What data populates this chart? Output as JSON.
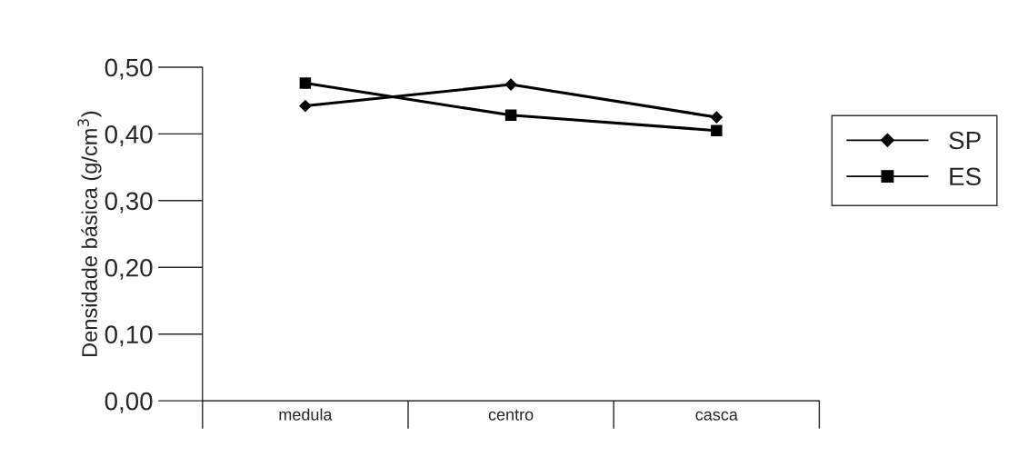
{
  "chart_data": {
    "type": "line",
    "ylabel": "Densidade básica (g/cm$^{3}$)",
    "categories": [
      "medula",
      "centro",
      "casca"
    ],
    "series": [
      {
        "name": "SP",
        "color": "#000000",
        "marker": "diamond",
        "values": [
          0.442,
          0.474,
          0.425
        ]
      },
      {
        "name": "ES",
        "color": "#000000",
        "marker": "square",
        "values": [
          0.476,
          0.428,
          0.405
        ]
      }
    ],
    "ylim": [
      0,
      0.5
    ],
    "yticks": [
      {
        "value": 0,
        "label": "0,00"
      },
      {
        "value": 0.1,
        "label": "0,10"
      },
      {
        "value": 0.2,
        "label": "0,20"
      },
      {
        "value": 0.3,
        "label": "0,30"
      },
      {
        "value": 0.4,
        "label": "0,40"
      },
      {
        "value": 0.5,
        "label": "0,50"
      }
    ],
    "grid": false,
    "legend": "right",
    "line_style": "solid"
  }
}
